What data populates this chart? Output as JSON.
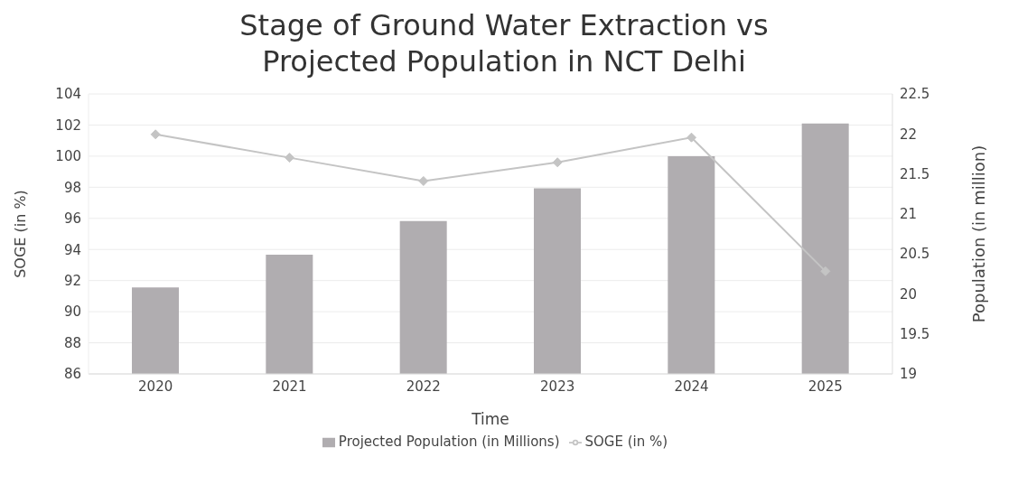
{
  "chart_data": {
    "type": "bar",
    "title": "Stage of Ground Water Extraction vs Projected Population in NCT Delhi",
    "xlabel": "Time",
    "ylabel": "SOGE (in %)",
    "y2label": "Population (in million)",
    "categories": [
      "2020",
      "2021",
      "2022",
      "2023",
      "2024",
      "2025"
    ],
    "series": [
      {
        "name": "Projected Population (in Millions)",
        "axis": "y2",
        "color": "#b0adb0",
        "values": [
          20.08,
          20.49,
          20.91,
          21.32,
          21.72,
          22.13
        ]
      },
      {
        "name": "SOGE (in %)",
        "type": "line",
        "axis": "y",
        "color": "#c4c4c4",
        "marker": "diamond",
        "values": [
          101.4,
          99.9,
          98.4,
          99.6,
          101.2,
          92.6
        ]
      }
    ],
    "ylim": [
      86,
      104
    ],
    "yticks": [
      86,
      88,
      90,
      92,
      94,
      96,
      98,
      100,
      102,
      104
    ],
    "y2lim": [
      19,
      22.5
    ],
    "y2ticks": [
      19,
      19.5,
      20,
      20.5,
      21,
      21.5,
      22,
      22.5
    ],
    "grid": "y",
    "legend": "bottom"
  }
}
